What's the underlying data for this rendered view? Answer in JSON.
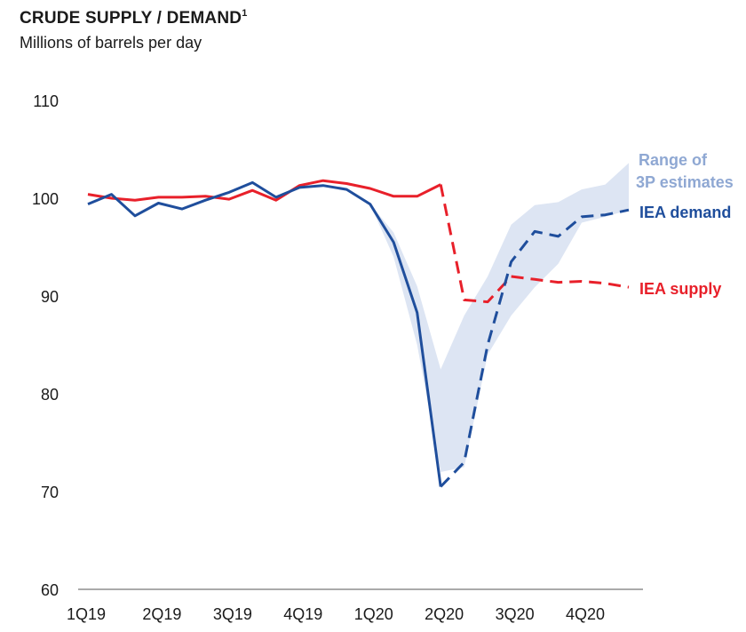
{
  "header": {
    "title": "CRUDE SUPPLY / DEMAND",
    "title_footnote": "1",
    "subtitle": "Millions of barrels per day"
  },
  "colors": {
    "demand": "#1f4e9c",
    "supply": "#e8202a",
    "range_fill": "#dde5f3",
    "range_label": "#8fa8d3"
  },
  "chart_data": {
    "type": "line",
    "title": "CRUDE SUPPLY / DEMAND",
    "ylabel": "Millions of barrels per day",
    "ylim": [
      60,
      110
    ],
    "yticks": [
      60,
      70,
      80,
      90,
      100,
      110
    ],
    "x_range": [
      0,
      24.5
    ],
    "x_ticks": [
      {
        "label": "1Q19",
        "x": 0
      },
      {
        "label": "2Q19",
        "x": 3
      },
      {
        "label": "3Q19",
        "x": 6
      },
      {
        "label": "4Q19",
        "x": 9
      },
      {
        "label": "1Q20",
        "x": 12
      },
      {
        "label": "2Q20",
        "x": 15
      },
      {
        "label": "3Q20",
        "x": 18
      },
      {
        "label": "4Q20",
        "x": 21
      }
    ],
    "series": [
      {
        "name": "IEA demand",
        "label": "IEA demand",
        "actual": [
          [
            0,
            99.4
          ],
          [
            1,
            100.4
          ],
          [
            2,
            98.2
          ],
          [
            3,
            99.5
          ],
          [
            4,
            98.9
          ],
          [
            5,
            99.8
          ],
          [
            6,
            100.6
          ],
          [
            7,
            101.6
          ],
          [
            8,
            100.1
          ],
          [
            9,
            101.1
          ],
          [
            10,
            101.3
          ],
          [
            11,
            100.9
          ],
          [
            12,
            99.4
          ],
          [
            13,
            95.5
          ],
          [
            14,
            88.3
          ],
          [
            15,
            70.5
          ]
        ],
        "forecast": [
          [
            15,
            70.5
          ],
          [
            16,
            73
          ],
          [
            17,
            85
          ],
          [
            18,
            93.5
          ],
          [
            19,
            96.6
          ],
          [
            20,
            96.1
          ],
          [
            21,
            98.1
          ],
          [
            22,
            98.3
          ],
          [
            23,
            98.8
          ]
        ]
      },
      {
        "name": "IEA supply",
        "label": "IEA supply",
        "actual": [
          [
            0,
            100.4
          ],
          [
            1,
            100.0
          ],
          [
            2,
            99.8
          ],
          [
            3,
            100.1
          ],
          [
            4,
            100.1
          ],
          [
            5,
            100.2
          ],
          [
            6,
            99.9
          ],
          [
            7,
            100.8
          ],
          [
            8,
            99.8
          ],
          [
            9,
            101.3
          ],
          [
            10,
            101.8
          ],
          [
            11,
            101.5
          ],
          [
            12,
            101.0
          ],
          [
            13,
            100.2
          ],
          [
            14,
            100.2
          ],
          [
            15,
            101.4
          ]
        ],
        "forecast": [
          [
            15,
            101.4
          ],
          [
            16,
            89.6
          ],
          [
            17,
            89.4
          ],
          [
            18,
            92.0
          ],
          [
            19,
            91.7
          ],
          [
            20,
            91.4
          ],
          [
            21,
            91.5
          ],
          [
            22,
            91.3
          ],
          [
            23,
            90.9
          ]
        ]
      }
    ],
    "range": {
      "label_lines": [
        "Range of",
        "3P estimates"
      ],
      "upper": [
        [
          12,
          99.4
        ],
        [
          13,
          96.5
        ],
        [
          14,
          91
        ],
        [
          15,
          82.5
        ],
        [
          16,
          88
        ],
        [
          17,
          92
        ],
        [
          18,
          97.3
        ],
        [
          19,
          99.3
        ],
        [
          20,
          99.6
        ],
        [
          21,
          100.9
        ],
        [
          22,
          101.4
        ],
        [
          23,
          103.6
        ]
      ],
      "lower": [
        [
          12,
          99.4
        ],
        [
          13,
          94
        ],
        [
          14,
          85
        ],
        [
          15,
          72
        ],
        [
          16,
          72.5
        ],
        [
          17,
          84
        ],
        [
          18,
          88
        ],
        [
          19,
          90.9
        ],
        [
          20,
          93.3
        ],
        [
          21,
          97.5
        ],
        [
          22,
          98.1
        ],
        [
          23,
          98.8
        ]
      ]
    }
  }
}
